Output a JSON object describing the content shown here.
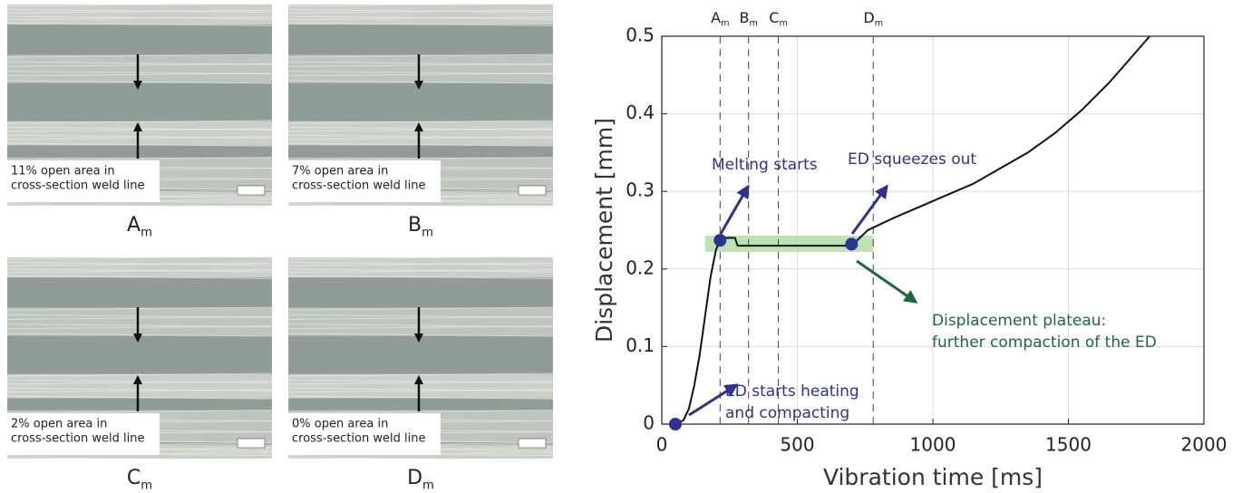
{
  "panels": [
    {
      "caption": [
        "11% open area in",
        "cross-section weld line"
      ],
      "label": "A",
      "sub": "m"
    },
    {
      "caption": [
        "7% open area in",
        "cross-section weld line"
      ],
      "label": "B",
      "sub": "m"
    },
    {
      "caption": [
        "2% open area in",
        "cross-section weld line"
      ],
      "label": "C",
      "sub": "m"
    },
    {
      "caption": [
        "0% open area in",
        "cross-section weld line"
      ],
      "label": "D",
      "sub": "m"
    }
  ],
  "chart_data": {
    "type": "line",
    "xlabel": "Vibration time [ms]",
    "ylabel": "Displacement [mm]",
    "xlim": [
      0,
      2000
    ],
    "ylim": [
      0,
      0.5
    ],
    "xticks": [
      0,
      500,
      1000,
      1500,
      2000
    ],
    "yticks": [
      0,
      0.1,
      0.2,
      0.3,
      0.4,
      0.5
    ],
    "grid": true,
    "series": [
      {
        "color": "#111111",
        "x": [
          50,
          80,
          100,
          120,
          140,
          160,
          180,
          200,
          215,
          230,
          270,
          280,
          700,
          760,
          850,
          950,
          1050,
          1150,
          1250,
          1350,
          1450,
          1550,
          1650,
          1750,
          1800
        ],
        "values": [
          0,
          0.005,
          0.02,
          0.05,
          0.09,
          0.14,
          0.19,
          0.225,
          0.237,
          0.24,
          0.24,
          0.23,
          0.23,
          0.25,
          0.265,
          0.28,
          0.295,
          0.31,
          0.33,
          0.35,
          0.375,
          0.405,
          0.44,
          0.48,
          0.5
        ]
      }
    ],
    "points": {
      "color": "#2e3192",
      "x": [
        50,
        215,
        700
      ],
      "values": [
        0,
        0.237,
        0.232
      ]
    },
    "plateau": {
      "color": "#a8d89a",
      "x": [
        160,
        780
      ],
      "values": [
        0.222,
        0.243
      ]
    },
    "markers": [
      {
        "label": "A",
        "sub": "m",
        "x": 215
      },
      {
        "label": "B",
        "sub": "m",
        "x": 320
      },
      {
        "label": "C",
        "sub": "m",
        "x": 430
      },
      {
        "label": "D",
        "sub": "m",
        "x": 780
      }
    ],
    "annotations": [
      {
        "lines": [
          "Melting starts"
        ],
        "color": "#2e3192"
      },
      {
        "lines": [
          "ED squeezes out"
        ],
        "color": "#2e3192"
      },
      {
        "lines": [
          "Displacement plateau:",
          "further compaction of the ED"
        ],
        "color": "#1a6b3a"
      },
      {
        "lines": [
          "ED starts heating",
          "and compacting"
        ],
        "color": "#2e3192"
      }
    ]
  }
}
